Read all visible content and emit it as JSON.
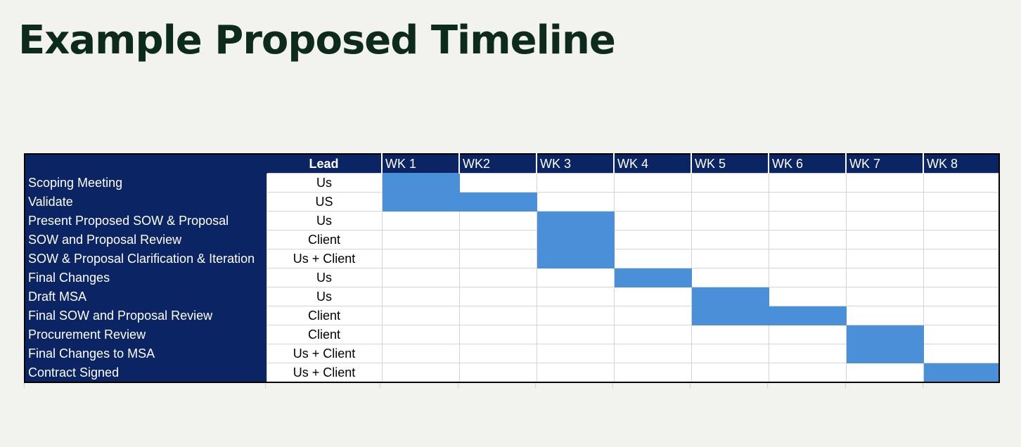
{
  "title": "Example Proposed Timeline",
  "table": {
    "lead_header": "Lead",
    "weeks": [
      "WK 1",
      "WK2",
      "WK 3",
      "WK 4",
      "WK 5",
      "WK 6",
      "WK 7",
      "WK 8"
    ],
    "tasks": [
      {
        "name": "Scoping Meeting",
        "lead": "Us",
        "weeks": [
          1
        ]
      },
      {
        "name": "Validate",
        "lead": "US",
        "weeks": [
          1,
          2
        ]
      },
      {
        "name": "Present Proposed SOW & Proposal",
        "lead": "Us",
        "weeks": [
          3
        ]
      },
      {
        "name": "SOW and Proposal Review",
        "lead": "Client",
        "weeks": [
          3
        ]
      },
      {
        "name": "SOW & Proposal Clarification & Iteration",
        "lead": "Us + Client",
        "weeks": [
          3
        ]
      },
      {
        "name": "Final Changes",
        "lead": "Us",
        "weeks": [
          4
        ]
      },
      {
        "name": "Draft MSA",
        "lead": "Us",
        "weeks": [
          5
        ]
      },
      {
        "name": "Final SOW and Proposal Review",
        "lead": "Client",
        "weeks": [
          5,
          6
        ]
      },
      {
        "name": "Procurement Review",
        "lead": "Client",
        "weeks": [
          7
        ]
      },
      {
        "name": "Final Changes to MSA",
        "lead": "Us + Client",
        "weeks": [
          7
        ]
      },
      {
        "name": "Contract Signed",
        "lead": "Us + Client",
        "weeks": [
          8
        ]
      }
    ],
    "colors": {
      "header": "#0b2463",
      "bar": "#4a90d9",
      "title": "#0d2b1c"
    }
  }
}
